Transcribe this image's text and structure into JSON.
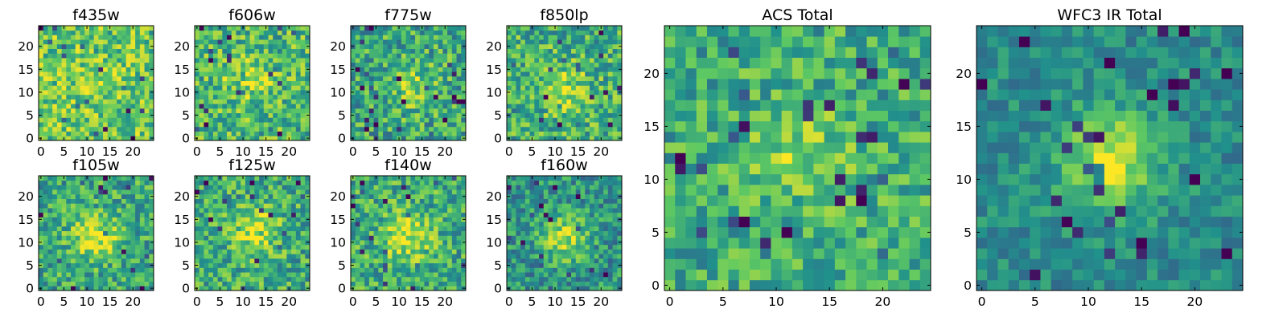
{
  "figure": {
    "colormap": "viridis",
    "colormap_stops": [
      "#440154",
      "#3b528b",
      "#21918c",
      "#5ec962",
      "#fde725"
    ]
  },
  "chart_data": [
    {
      "type": "heatmap",
      "title": "f435w",
      "grid_size": [
        25,
        25
      ],
      "xlim": [
        -0.5,
        24.5
      ],
      "ylim": [
        -0.5,
        24.5
      ],
      "xticks": [
        0,
        5,
        10,
        15,
        20
      ],
      "yticks": [
        0,
        5,
        10,
        15,
        20
      ],
      "source_center": [
        12,
        11
      ],
      "peak_level": 0.08,
      "background_level": 0.74,
      "noise_level": 0.24
    },
    {
      "type": "heatmap",
      "title": "f606w",
      "grid_size": [
        25,
        25
      ],
      "xlim": [
        -0.5,
        24.5
      ],
      "ylim": [
        -0.5,
        24.5
      ],
      "xticks": [
        0,
        5,
        10,
        15,
        20
      ],
      "yticks": [
        0,
        5,
        10,
        15,
        20
      ],
      "source_center": [
        11,
        13
      ],
      "peak_level": 0.22,
      "background_level": 0.66,
      "noise_level": 0.26
    },
    {
      "type": "heatmap",
      "title": "f775w",
      "grid_size": [
        25,
        25
      ],
      "xlim": [
        -0.5,
        24.5
      ],
      "ylim": [
        -0.5,
        24.5
      ],
      "xticks": [
        0,
        5,
        10,
        15,
        20
      ],
      "yticks": [
        0,
        5,
        10,
        15,
        20
      ],
      "source_center": [
        14,
        11
      ],
      "peak_level": 0.22,
      "background_level": 0.6,
      "noise_level": 0.26
    },
    {
      "type": "heatmap",
      "title": "f850lp",
      "grid_size": [
        25,
        25
      ],
      "xlim": [
        -0.5,
        24.5
      ],
      "ylim": [
        -0.5,
        24.5
      ],
      "xticks": [
        0,
        5,
        10,
        15,
        20
      ],
      "yticks": [
        0,
        5,
        10,
        15,
        20
      ],
      "source_center": [
        12,
        11
      ],
      "peak_level": 0.2,
      "background_level": 0.64,
      "noise_level": 0.26
    },
    {
      "type": "heatmap",
      "title": "f105w",
      "grid_size": [
        25,
        25
      ],
      "xlim": [
        -0.5,
        24.5
      ],
      "ylim": [
        -0.5,
        24.5
      ],
      "xticks": [
        0,
        5,
        10,
        15,
        20
      ],
      "yticks": [
        0,
        5,
        10,
        15,
        20
      ],
      "source_center": [
        12,
        11
      ],
      "peak_level": 0.36,
      "background_level": 0.6,
      "noise_level": 0.24
    },
    {
      "type": "heatmap",
      "title": "f125w",
      "grid_size": [
        25,
        25
      ],
      "xlim": [
        -0.5,
        24.5
      ],
      "ylim": [
        -0.5,
        24.5
      ],
      "xticks": [
        0,
        5,
        10,
        15,
        20
      ],
      "yticks": [
        0,
        5,
        10,
        15,
        20
      ],
      "source_center": [
        13,
        12
      ],
      "peak_level": 0.3,
      "background_level": 0.62,
      "noise_level": 0.24
    },
    {
      "type": "heatmap",
      "title": "f140w",
      "grid_size": [
        25,
        25
      ],
      "xlim": [
        -0.5,
        24.5
      ],
      "ylim": [
        -0.5,
        24.5
      ],
      "xticks": [
        0,
        5,
        10,
        15,
        20
      ],
      "yticks": [
        0,
        5,
        10,
        15,
        20
      ],
      "source_center": [
        12,
        11
      ],
      "peak_level": 0.32,
      "background_level": 0.62,
      "noise_level": 0.24
    },
    {
      "type": "heatmap",
      "title": "f160w",
      "grid_size": [
        25,
        25
      ],
      "xlim": [
        -0.5,
        24.5
      ],
      "ylim": [
        -0.5,
        24.5
      ],
      "xticks": [
        0,
        5,
        10,
        15,
        20
      ],
      "yticks": [
        0,
        5,
        10,
        15,
        20
      ],
      "source_center": [
        12,
        11
      ],
      "peak_level": 0.36,
      "background_level": 0.52,
      "noise_level": 0.22
    },
    {
      "type": "heatmap",
      "title": "ACS Total",
      "grid_size": [
        25,
        25
      ],
      "xlim": [
        -0.5,
        24.5
      ],
      "ylim": [
        -0.5,
        24.5
      ],
      "xticks": [
        0,
        5,
        10,
        15,
        20
      ],
      "yticks": [
        0,
        5,
        10,
        15,
        20
      ],
      "source_center": [
        12,
        12
      ],
      "peak_level": 0.22,
      "background_level": 0.62,
      "noise_level": 0.22
    },
    {
      "type": "heatmap",
      "title": "WFC3 IR Total",
      "grid_size": [
        25,
        25
      ],
      "xlim": [
        -0.5,
        24.5
      ],
      "ylim": [
        -0.5,
        24.5
      ],
      "xticks": [
        0,
        5,
        10,
        15,
        20
      ],
      "yticks": [
        0,
        5,
        10,
        15,
        20
      ],
      "source_center": [
        12,
        12
      ],
      "peak_level": 0.46,
      "background_level": 0.48,
      "noise_level": 0.14
    }
  ]
}
